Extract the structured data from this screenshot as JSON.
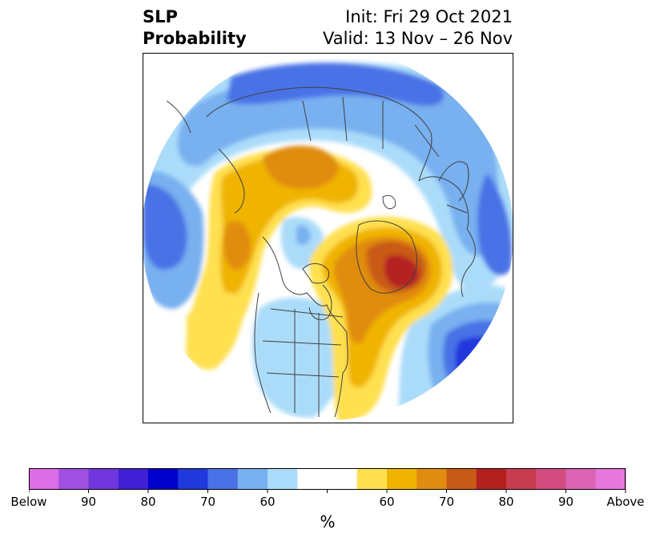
{
  "header": {
    "variable": "SLP",
    "product": "Probability",
    "init": "Init: Fri 29 Oct 2021",
    "valid": "Valid: 13 Nov – 26 Nov"
  },
  "colorbar": {
    "unit": "%",
    "colors": [
      "#dc6ee6",
      "#a050e0",
      "#7038dc",
      "#4020d4",
      "#0000cc",
      "#2038dc",
      "#4a72e6",
      "#78b0f0",
      "#aadcfa",
      "#ffffff",
      "#ffffff",
      "#ffe050",
      "#f0b400",
      "#e08c10",
      "#c85a18",
      "#b42020",
      "#c83c50",
      "#d24c80",
      "#dc64b4",
      "#e678dc"
    ],
    "ticks": [
      {
        "label": "Below",
        "index": 0
      },
      {
        "label": "90",
        "index": 2
      },
      {
        "label": "80",
        "index": 4
      },
      {
        "label": "70",
        "index": 6
      },
      {
        "label": "60",
        "index": 8
      },
      {
        "label": "",
        "index": 10
      },
      {
        "label": "60",
        "index": 12
      },
      {
        "label": "70",
        "index": 14
      },
      {
        "label": "80",
        "index": 16
      },
      {
        "label": "90",
        "index": 18
      },
      {
        "label": "Above",
        "index": 20
      }
    ]
  },
  "map": {
    "projection": "north-polar-stereographic",
    "below_color_scale": [
      "#aadcfa",
      "#78b0f0",
      "#4a72e6",
      "#2038dc"
    ],
    "above_color_scale": [
      "#ffe050",
      "#f0b400",
      "#e08c10",
      "#c85a18",
      "#b42020"
    ],
    "anomalies": [
      {
        "region": "Siberia / North Asia",
        "sign": "below",
        "level": 2
      },
      {
        "region": "Europe / North Atlantic",
        "sign": "below",
        "level": 2
      },
      {
        "region": "Eastern North Atlantic",
        "sign": "below",
        "level": 4
      },
      {
        "region": "North Pacific",
        "sign": "below",
        "level": 2
      },
      {
        "region": "Western United States",
        "sign": "below",
        "level": 1
      },
      {
        "region": "Greenland",
        "sign": "above",
        "level": 5
      },
      {
        "region": "Eastern Canada",
        "sign": "above",
        "level": 3
      },
      {
        "region": "Eastern United States",
        "sign": "above",
        "level": 2
      },
      {
        "region": "Alaska / Bering Sea",
        "sign": "above",
        "level": 2
      },
      {
        "region": "Chukotka / East Siberia",
        "sign": "above",
        "level": 3
      },
      {
        "region": "Central Pacific",
        "sign": "above",
        "level": 1
      },
      {
        "region": "Arctic Ocean",
        "sign": "below",
        "level": 1
      }
    ]
  }
}
